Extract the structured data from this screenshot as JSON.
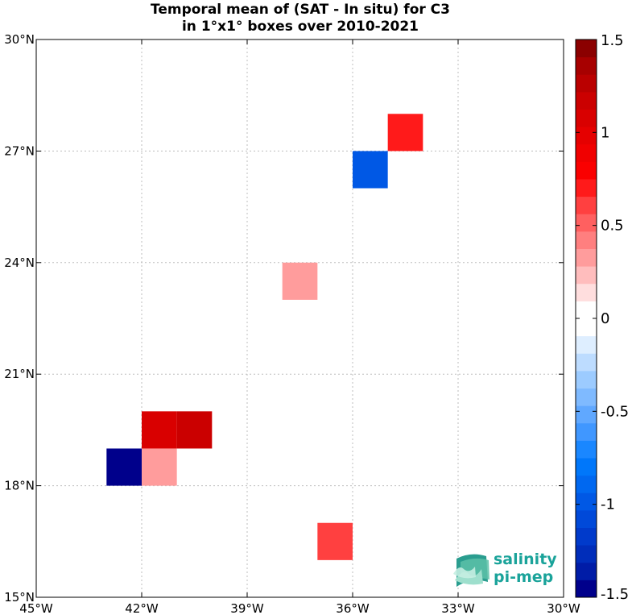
{
  "chart_data": {
    "type": "heatmap",
    "title_lines": [
      "Temporal mean of (SAT - In situ) for C3",
      "in 1°x1° boxes over 2010-2021"
    ],
    "x_ticks": [
      {
        "value": -45,
        "label": "45°W"
      },
      {
        "value": -42,
        "label": "42°W"
      },
      {
        "value": -39,
        "label": "39°W"
      },
      {
        "value": -36,
        "label": "36°W"
      },
      {
        "value": -33,
        "label": "33°W"
      },
      {
        "value": -30,
        "label": "30°W"
      }
    ],
    "y_ticks": [
      {
        "value": 15,
        "label": "15°N"
      },
      {
        "value": 18,
        "label": "18°N"
      },
      {
        "value": 21,
        "label": "21°N"
      },
      {
        "value": 24,
        "label": "24°N"
      },
      {
        "value": 27,
        "label": "27°N"
      },
      {
        "value": 30,
        "label": "30°N"
      }
    ],
    "xlim": [
      -45,
      -30
    ],
    "ylim": [
      15,
      30
    ],
    "grid": true,
    "box_size_deg": 1,
    "cells": [
      {
        "lon": -35,
        "lat": 27,
        "value": 0.7
      },
      {
        "lon": -36,
        "lat": 26,
        "value": -1.0
      },
      {
        "lon": -38,
        "lat": 23,
        "value": 0.3
      },
      {
        "lon": -42,
        "lat": 19,
        "value": 1.05
      },
      {
        "lon": -41,
        "lat": 19,
        "value": 1.2
      },
      {
        "lon": -43,
        "lat": 18,
        "value": -1.5
      },
      {
        "lon": -42,
        "lat": 18,
        "value": 0.3
      },
      {
        "lon": -37,
        "lat": 16,
        "value": 0.65
      }
    ],
    "colorbar": {
      "vmin": -1.5,
      "vmax": 1.5,
      "tick_values": [
        -1.5,
        -1,
        -0.5,
        0,
        0.5,
        1,
        1.5
      ],
      "tick_labels": [
        "-1.5",
        "-1",
        "-0.5",
        "0",
        "0.5",
        "1",
        "1.5"
      ],
      "colors": [
        "#00008b",
        "#001ca7",
        "#002dba",
        "#003acb",
        "#0049d9",
        "#0058e5",
        "#0068f0",
        "#0077fa",
        "#1a87ff",
        "#4097ff",
        "#60a8ff",
        "#7fbaff",
        "#9ccbff",
        "#bddcff",
        "#deeeff",
        "#ffffff",
        "#ffffff",
        "#ffdede",
        "#ffbdbd",
        "#ff9c9c",
        "#ff7f7f",
        "#ff6060",
        "#ff4040",
        "#ff1a1a",
        "#fa0000",
        "#f00000",
        "#e50000",
        "#d90000",
        "#cb0000",
        "#ba0000",
        "#a70000",
        "#8b0000"
      ]
    }
  },
  "logo": {
    "line1": "salinity",
    "line2": "pi-mep"
  }
}
